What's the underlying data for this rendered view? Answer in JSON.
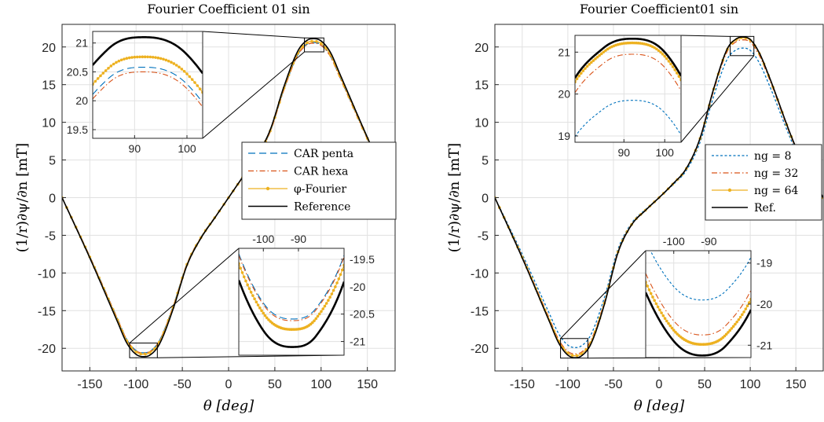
{
  "chart_data": [
    {
      "type": "line",
      "title": "Fourier Coefficient 01 sin",
      "xlabel": "θ [deg]",
      "ylabel": "(1/r)∂ψ/∂n [mT]",
      "xlim": [
        -180,
        180
      ],
      "ylim": [
        -23,
        23
      ],
      "xticks": [
        -150,
        -100,
        -50,
        0,
        50,
        100,
        150
      ],
      "yticks": [
        -20,
        -15,
        -10,
        -5,
        0,
        5,
        10,
        15,
        20
      ],
      "grid": true,
      "legend_position": "right",
      "series": [
        {
          "name": "CAR penta",
          "color": "#0072BD",
          "style": "dashed",
          "peak": 20.6,
          "trough": -20.57
        },
        {
          "name": "CAR hexa",
          "color": "#D95319",
          "style": "dashdot",
          "peak": 20.52,
          "trough": -20.6
        },
        {
          "name": "φ-Fourier",
          "color": "#EDB120",
          "style": "solid-dots",
          "peak": 20.78,
          "trough": -20.76
        },
        {
          "name": "Reference",
          "color": "#000000",
          "style": "solid",
          "peak": 21.12,
          "trough": -21.08
        }
      ],
      "x": [
        -180,
        -150,
        -120,
        -110,
        -100,
        -92,
        -85,
        -75,
        -60,
        -45,
        -30,
        -15,
        0,
        15,
        30,
        45,
        60,
        75,
        85,
        92,
        100,
        110,
        120,
        150,
        180
      ],
      "reference_values": [
        0,
        -8,
        -16.5,
        -19.3,
        -20.8,
        -21.1,
        -20.9,
        -19.5,
        -14.8,
        -9,
        -5.4,
        -2.7,
        0,
        2.7,
        5.4,
        9,
        14.8,
        19.5,
        20.9,
        21.1,
        20.8,
        19.3,
        16.5,
        8,
        0
      ],
      "zoom_insets": [
        {
          "xlim": [
            82,
            103
          ],
          "ylim": [
            19.35,
            21.2
          ],
          "xticks": [
            90,
            100
          ],
          "yticks": [
            19.5,
            20,
            20.5,
            21
          ]
        },
        {
          "xlim": [
            -107,
            -77
          ],
          "ylim": [
            -21.25,
            -19.3
          ],
          "xticks": [
            -100,
            -90
          ],
          "yticks": [
            -19.5,
            -20,
            -20.5,
            -21
          ]
        }
      ]
    },
    {
      "type": "line",
      "title": "Fourier Coefficient01 sin",
      "xlabel": "θ [deg]",
      "ylabel": "(1/r)∂ψ/∂n [mT]",
      "xlim": [
        -180,
        180
      ],
      "ylim": [
        -23,
        23
      ],
      "xticks": [
        -150,
        -100,
        -50,
        0,
        50,
        100,
        150
      ],
      "yticks": [
        -20,
        -15,
        -10,
        -5,
        0,
        5,
        10,
        15,
        20
      ],
      "grid": true,
      "legend_position": "right",
      "series": [
        {
          "name": "ng = 8",
          "color": "#0072BD",
          "style": "dotted",
          "peak": 19.85,
          "trough": -19.9
        },
        {
          "name": "ng = 32",
          "color": "#D95319",
          "style": "dashdot",
          "peak": 20.95,
          "trough": -20.75
        },
        {
          "name": "ng = 64",
          "color": "#EDB120",
          "style": "solid-dots",
          "peak": 21.22,
          "trough": -20.98
        },
        {
          "name": "Ref.",
          "color": "#000000",
          "style": "solid",
          "peak": 21.32,
          "trough": -21.25
        }
      ],
      "x": [
        -180,
        -150,
        -120,
        -110,
        -100,
        -92,
        -85,
        -75,
        -60,
        -45,
        -30,
        -15,
        0,
        15,
        30,
        45,
        60,
        75,
        85,
        92,
        100,
        110,
        120,
        150,
        180
      ],
      "reference_values": [
        0,
        -8,
        -16.5,
        -19.3,
        -20.9,
        -21.25,
        -21,
        -19.5,
        -14.2,
        -7.3,
        -3.6,
        -1.7,
        0,
        1.8,
        3.9,
        7.9,
        14.5,
        19.8,
        21.1,
        21.32,
        21,
        19.2,
        16.3,
        6.7,
        0
      ],
      "zoom_insets": [
        {
          "xlim": [
            78,
            104
          ],
          "ylim": [
            18.85,
            21.4
          ],
          "xticks": [
            90,
            100
          ],
          "yticks": [
            19,
            20,
            21
          ]
        },
        {
          "xlim": [
            -108,
            -78
          ],
          "ylim": [
            -21.3,
            -18.7
          ],
          "xticks": [
            -100,
            -90
          ],
          "yticks": [
            -19,
            -20,
            -21
          ]
        }
      ]
    }
  ]
}
